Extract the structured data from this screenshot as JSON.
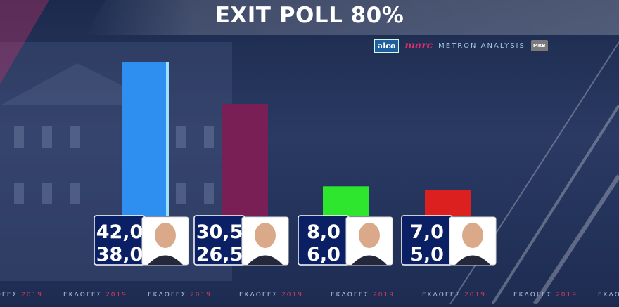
{
  "header": {
    "title": "EXIT POLL 80%"
  },
  "logos": {
    "alco": "alco",
    "marc": "marc",
    "metron": "METRON ANALYSIS",
    "mrb": "MRB"
  },
  "footer": {
    "word": "ΕΚΛΟΓΕΣ",
    "year": "2019"
  },
  "colors": {
    "nd": "#2e8ff0",
    "syriza": "#7a1f55",
    "kinal": "#2ee62e",
    "kke": "#dc1f1f",
    "value_box": "#0b1f64"
  },
  "chart_data": {
    "type": "bar",
    "title": "EXIT POLL 80%",
    "categories": [
      "",
      "",
      "",
      ""
    ],
    "series": [
      {
        "values": [
          42.0,
          30.5,
          8.0,
          7.0
        ]
      },
      {
        "values": [
          38.0,
          26.5,
          6.0,
          5.0
        ]
      }
    ],
    "value_labels_upper": [
      "42,0",
      "30,5",
      "8,0",
      "7,0"
    ],
    "value_labels_lower": [
      "38,0",
      "26,5",
      "6,0",
      "5,0"
    ],
    "bar_colors": [
      "#2e8ff0",
      "#7a1f55",
      "#2ee62e",
      "#dc1f1f"
    ],
    "bar_value_basis": "upper",
    "ylim": [
      0,
      42.0
    ],
    "grid": false,
    "legend": "none"
  }
}
